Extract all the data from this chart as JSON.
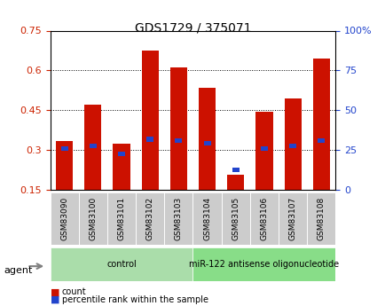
{
  "title": "GDS1729 / 375071",
  "samples": [
    "GSM83090",
    "GSM83100",
    "GSM83101",
    "GSM83102",
    "GSM83103",
    "GSM83104",
    "GSM83105",
    "GSM83106",
    "GSM83107",
    "GSM83108"
  ],
  "bar_bottoms": [
    0.15,
    0.15,
    0.15,
    0.15,
    0.15,
    0.15,
    0.15,
    0.15,
    0.15,
    0.15
  ],
  "bar_tops": [
    0.335,
    0.47,
    0.325,
    0.675,
    0.61,
    0.535,
    0.205,
    0.445,
    0.495,
    0.645
  ],
  "percentile_vals": [
    0.305,
    0.315,
    0.285,
    0.34,
    0.335,
    0.325,
    0.225,
    0.305,
    0.315,
    0.335
  ],
  "ylim": [
    0.15,
    0.75
  ],
  "yticks_left": [
    0.15,
    0.3,
    0.45,
    0.6,
    0.75
  ],
  "yticks_right": [
    0,
    25,
    50,
    75,
    100
  ],
  "ytick_labels_right": [
    "0",
    "25",
    "50",
    "75",
    "100%"
  ],
  "bar_color": "#cc1100",
  "percentile_color": "#2244cc",
  "background_plot": "#ffffff",
  "grid_color": "#000000",
  "agent_groups": [
    {
      "label": "control",
      "start": 0,
      "end": 5,
      "color": "#aaddaa"
    },
    {
      "label": "miR-122 antisense oligonucleotide",
      "start": 5,
      "end": 10,
      "color": "#88dd88"
    }
  ],
  "agent_label": "agent",
  "legend_count_label": "count",
  "legend_pct_label": "percentile rank within the sample",
  "bar_width": 0.6,
  "tick_label_bg": "#cccccc"
}
